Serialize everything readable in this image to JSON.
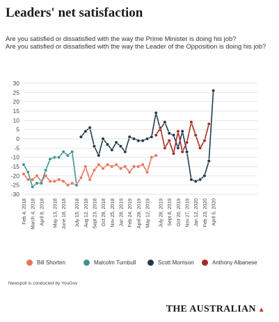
{
  "title": "Leaders' net satisfaction",
  "subtitle_lines": [
    "Are you satisfied or dissatisfied with the way the Prime Minister is doing his job?",
    "Are you satisfied or dissatisfied with the way the Leader of the Opposition is doing his job?"
  ],
  "note": "Newspoll is conducted by YouGov",
  "brand": "THE AUSTRALIAN",
  "colors": {
    "shorten": "#e8735a",
    "turnbull": "#3f9393",
    "morrison": "#1f3a4d",
    "albanese": "#a52a20",
    "grid": "#d9d9d9",
    "axis_text": "#444444"
  },
  "chart_data": {
    "type": "line",
    "ylim": [
      -30,
      30
    ],
    "yticks": [
      30,
      25,
      20,
      15,
      10,
      5,
      0,
      -5,
      -10,
      -15,
      -20,
      -25,
      -30
    ],
    "x_index_range": [
      0,
      53
    ],
    "xtick_labels": [
      {
        "i": 0,
        "label": "Feb 4, 2018"
      },
      {
        "i": 2,
        "label": "March 4, 2018"
      },
      {
        "i": 4,
        "label": "April 8, 2018"
      },
      {
        "i": 7,
        "label": "May 13, 2018"
      },
      {
        "i": 9,
        "label": "June 18, 2018"
      },
      {
        "i": 12,
        "label": "July 15, 2018"
      },
      {
        "i": 14,
        "label": "Aug 12, 2018"
      },
      {
        "i": 16,
        "label": "Sept 23, 2018"
      },
      {
        "i": 18,
        "label": "Oct 28, 2018"
      },
      {
        "i": 20,
        "label": "Nov 25, 2018"
      },
      {
        "i": 22,
        "label": "Jan 28, 2019"
      },
      {
        "i": 24,
        "label": "Feb 24, 2019"
      },
      {
        "i": 26,
        "label": "April 28, 2019"
      },
      {
        "i": 28,
        "label": "May 12, 2019"
      },
      {
        "i": 31,
        "label": "July 28, 2019"
      },
      {
        "i": 33,
        "label": "Sept 8, 2019"
      },
      {
        "i": 35,
        "label": "Oct 20, 2019"
      },
      {
        "i": 37,
        "label": "Nov 27, 2019"
      },
      {
        "i": 39,
        "label": "Jan 12, 2020"
      },
      {
        "i": 41,
        "label": "Feb 23, 2020"
      },
      {
        "i": 43,
        "label": "April 5, 2020"
      }
    ],
    "series": [
      {
        "name": "Bill Shorten",
        "color_key": "shorten",
        "points": [
          [
            0,
            -19
          ],
          [
            1,
            -22
          ],
          [
            2,
            -22
          ],
          [
            3,
            -20
          ],
          [
            4,
            -23
          ],
          [
            5,
            -20
          ],
          [
            6,
            -23
          ],
          [
            7,
            -23
          ],
          [
            8,
            -22
          ],
          [
            9,
            -23
          ],
          [
            10,
            -25
          ],
          [
            11,
            -24
          ],
          [
            12,
            -25
          ],
          [
            13,
            -21
          ],
          [
            14,
            -15
          ],
          [
            15,
            -22
          ],
          [
            16,
            -17
          ],
          [
            17,
            -14
          ],
          [
            18,
            -16
          ],
          [
            19,
            -14
          ],
          [
            20,
            -15
          ],
          [
            21,
            -14
          ],
          [
            22,
            -16
          ],
          [
            23,
            -15
          ],
          [
            24,
            -18
          ],
          [
            25,
            -15
          ],
          [
            26,
            -15
          ],
          [
            27,
            -14
          ],
          [
            28,
            -18
          ],
          [
            29,
            -10
          ],
          [
            30,
            -9
          ]
        ]
      },
      {
        "name": "Malcolm Turnbull",
        "color_key": "turnbull",
        "points": [
          [
            0,
            -14
          ],
          [
            1,
            -18
          ],
          [
            2,
            -26
          ],
          [
            3,
            -24
          ],
          [
            4,
            -24
          ],
          [
            5,
            -17
          ],
          [
            6,
            -11
          ],
          [
            7,
            -10
          ],
          [
            8,
            -10
          ],
          [
            9,
            -7
          ],
          [
            10,
            -9
          ],
          [
            11,
            -7
          ],
          [
            12,
            -25
          ]
        ]
      },
      {
        "name": "Scott Morrison",
        "color_key": "morrison",
        "points": [
          [
            13,
            1
          ],
          [
            14,
            4
          ],
          [
            15,
            6
          ],
          [
            16,
            -4
          ],
          [
            17,
            -9
          ],
          [
            18,
            0
          ],
          [
            19,
            -3
          ],
          [
            20,
            -6
          ],
          [
            21,
            -2
          ],
          [
            22,
            -4
          ],
          [
            23,
            -7
          ],
          [
            24,
            1
          ],
          [
            25,
            0
          ],
          [
            26,
            -1
          ],
          [
            27,
            -1
          ],
          [
            28,
            0
          ],
          [
            29,
            1
          ],
          [
            30,
            14
          ],
          [
            31,
            5
          ],
          [
            32,
            9
          ],
          [
            33,
            3
          ],
          [
            34,
            2
          ],
          [
            35,
            -5
          ],
          [
            36,
            4
          ],
          [
            37,
            -7
          ],
          [
            38,
            -22
          ],
          [
            39,
            -23
          ],
          [
            40,
            -22
          ],
          [
            41,
            -20
          ],
          [
            42,
            -12
          ],
          [
            43,
            26
          ]
        ]
      },
      {
        "name": "Anthony Albanese",
        "color_key": "albanese",
        "points": [
          [
            30,
            2
          ],
          [
            31,
            6
          ],
          [
            32,
            -5
          ],
          [
            33,
            -1
          ],
          [
            34,
            -8
          ],
          [
            35,
            4
          ],
          [
            36,
            -7
          ],
          [
            37,
            -2
          ],
          [
            38,
            9
          ],
          [
            39,
            2
          ],
          [
            40,
            -5
          ],
          [
            41,
            -1
          ],
          [
            42,
            8
          ]
        ]
      }
    ]
  }
}
